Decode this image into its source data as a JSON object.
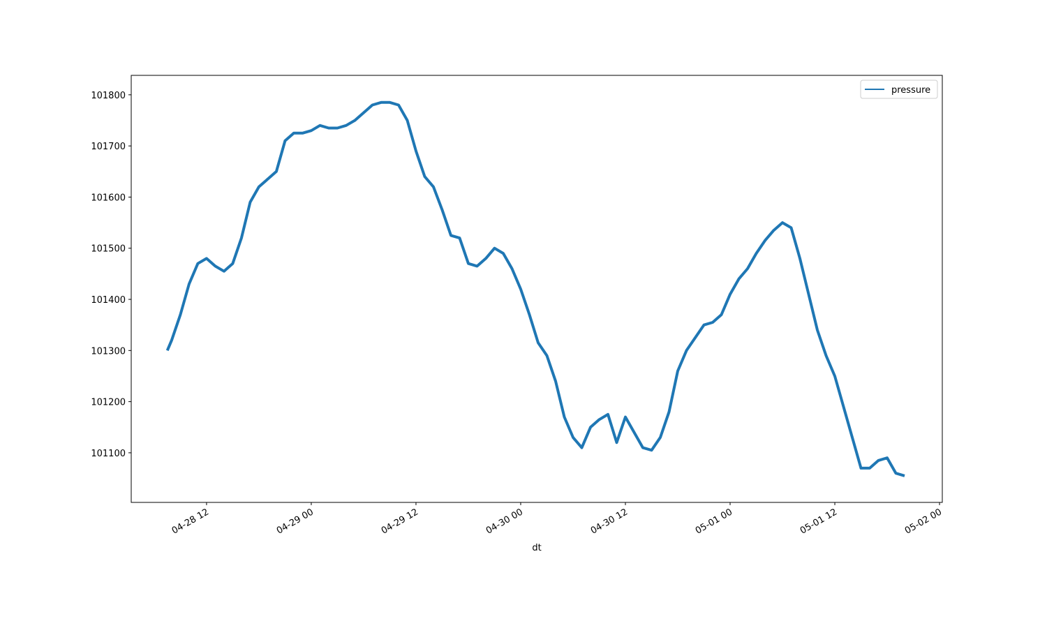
{
  "chart_data": {
    "type": "line",
    "x_label": "dt",
    "x": [
      "04-28 07:30",
      "04-28 08:00",
      "04-28 09:00",
      "04-28 10:00",
      "04-28 11:00",
      "04-28 12:00",
      "04-28 13:00",
      "04-28 14:00",
      "04-28 15:00",
      "04-28 16:00",
      "04-28 17:00",
      "04-28 18:00",
      "04-28 19:00",
      "04-28 20:00",
      "04-28 21:00",
      "04-28 22:00",
      "04-28 23:00",
      "04-29 00:00",
      "04-29 01:00",
      "04-29 02:00",
      "04-29 03:00",
      "04-29 04:00",
      "04-29 05:00",
      "04-29 06:00",
      "04-29 07:00",
      "04-29 08:00",
      "04-29 09:00",
      "04-29 10:00",
      "04-29 11:00",
      "04-29 12:00",
      "04-29 13:00",
      "04-29 14:00",
      "04-29 15:00",
      "04-29 16:00",
      "04-29 17:00",
      "04-29 18:00",
      "04-29 19:00",
      "04-29 20:00",
      "04-29 21:00",
      "04-29 22:00",
      "04-29 23:00",
      "04-30 00:00",
      "04-30 01:00",
      "04-30 02:00",
      "04-30 03:00",
      "04-30 04:00",
      "04-30 05:00",
      "04-30 06:00",
      "04-30 07:00",
      "04-30 08:00",
      "04-30 09:00",
      "04-30 10:00",
      "04-30 11:00",
      "04-30 12:00",
      "04-30 13:00",
      "04-30 14:00",
      "04-30 15:00",
      "04-30 16:00",
      "04-30 17:00",
      "04-30 18:00",
      "04-30 19:00",
      "04-30 20:00",
      "04-30 21:00",
      "04-30 22:00",
      "04-30 23:00",
      "05-01 00:00",
      "05-01 01:00",
      "05-01 02:00",
      "05-01 03:00",
      "05-01 04:00",
      "05-01 05:00",
      "05-01 06:00",
      "05-01 07:00",
      "05-01 08:00",
      "05-01 09:00",
      "05-01 10:00",
      "05-01 11:00",
      "05-01 12:00",
      "05-01 13:00",
      "05-01 14:00",
      "05-01 15:00",
      "05-01 16:00",
      "05-01 17:00",
      "05-01 18:00",
      "05-01 19:00",
      "05-01 20:00"
    ],
    "series": [
      {
        "name": "pressure",
        "color": "#1f77b4",
        "values": [
          101300,
          101320,
          101370,
          101430,
          101470,
          101480,
          101465,
          101455,
          101470,
          101520,
          101590,
          101620,
          101635,
          101650,
          101710,
          101725,
          101725,
          101730,
          101740,
          101735,
          101735,
          101740,
          101750,
          101765,
          101780,
          101785,
          101785,
          101780,
          101750,
          101690,
          101640,
          101620,
          101575,
          101525,
          101520,
          101470,
          101465,
          101480,
          101500,
          101490,
          101460,
          101420,
          101370,
          101315,
          101290,
          101240,
          101170,
          101130,
          101110,
          101150,
          101165,
          101175,
          101120,
          101170,
          101140,
          101110,
          101105,
          101130,
          101180,
          101260,
          101300,
          101325,
          101350,
          101355,
          101370,
          101410,
          101440,
          101460,
          101490,
          101515,
          101535,
          101550,
          101540,
          101480,
          101410,
          101340,
          101290,
          101250,
          101190,
          101130,
          101070,
          101070,
          101085,
          101090,
          101060,
          101055
        ]
      }
    ],
    "xlim": [
      "04-28 03:22",
      "05-02 00:19"
    ],
    "xticks": [
      {
        "value": "04-28 12:00",
        "label": "04-28 12"
      },
      {
        "value": "04-29 00:00",
        "label": "04-29 00"
      },
      {
        "value": "04-29 12:00",
        "label": "04-29 12"
      },
      {
        "value": "04-30 00:00",
        "label": "04-30 00"
      },
      {
        "value": "04-30 12:00",
        "label": "04-30 12"
      },
      {
        "value": "05-01 00:00",
        "label": "05-01 00"
      },
      {
        "value": "05-01 12:00",
        "label": "05-01 12"
      },
      {
        "value": "05-02 00:00",
        "label": "05-02 00"
      }
    ],
    "ylim": [
      101003,
      101838
    ],
    "yticks": [
      101100,
      101200,
      101300,
      101400,
      101500,
      101600,
      101700,
      101800
    ],
    "grid": false,
    "legend": "upper right"
  }
}
